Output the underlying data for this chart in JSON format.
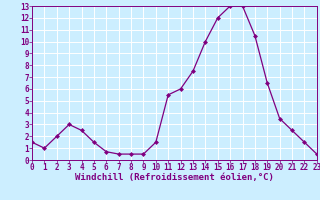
{
  "x": [
    0,
    1,
    2,
    3,
    4,
    5,
    6,
    7,
    8,
    9,
    10,
    11,
    12,
    13,
    14,
    15,
    16,
    17,
    18,
    19,
    20,
    21,
    22,
    23
  ],
  "y": [
    1.5,
    1.0,
    2.0,
    3.0,
    2.5,
    1.5,
    0.7,
    0.5,
    0.5,
    0.5,
    1.5,
    5.5,
    6.0,
    7.5,
    10.0,
    12.0,
    13.0,
    13.0,
    10.5,
    6.5,
    3.5,
    2.5,
    1.5,
    0.5
  ],
  "xlabel": "Windchill (Refroidissement éolien,°C)",
  "ylim": [
    0,
    13
  ],
  "xlim": [
    0,
    23
  ],
  "yticks": [
    0,
    1,
    2,
    3,
    4,
    5,
    6,
    7,
    8,
    9,
    10,
    11,
    12,
    13
  ],
  "xticks": [
    0,
    1,
    2,
    3,
    4,
    5,
    6,
    7,
    8,
    9,
    10,
    11,
    12,
    13,
    14,
    15,
    16,
    17,
    18,
    19,
    20,
    21,
    22,
    23
  ],
  "line_color": "#800080",
  "marker": "D",
  "marker_size": 2.0,
  "bg_color": "#cceeff",
  "grid_color": "#ffffff",
  "tick_label_color": "#800080",
  "xlabel_color": "#800080",
  "xlabel_fontsize": 6.5,
  "tick_fontsize": 5.5,
  "linewidth": 0.9
}
